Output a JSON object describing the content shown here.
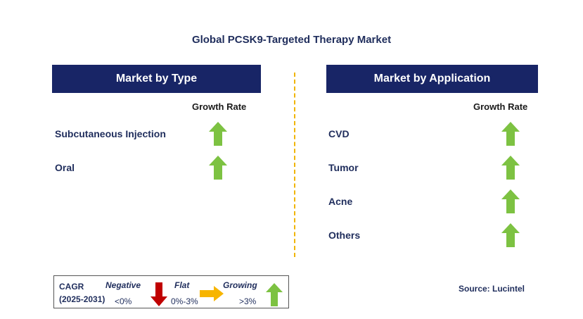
{
  "title": "Global PCSK9-Targeted Therapy Market",
  "type_panel": {
    "header": "Market by Type",
    "growth_label": "Growth Rate",
    "items": [
      {
        "label": "Subcutaneous Injection",
        "trend": "growing"
      },
      {
        "label": "Oral",
        "trend": "growing"
      }
    ]
  },
  "application_panel": {
    "header": "Market by Application",
    "growth_label": "Growth Rate",
    "items": [
      {
        "label": "CVD",
        "trend": "growing"
      },
      {
        "label": "Tumor",
        "trend": "growing"
      },
      {
        "label": "Acne",
        "trend": "growing"
      },
      {
        "label": "Others",
        "trend": "growing"
      }
    ]
  },
  "legend": {
    "cagr_label": "CAGR",
    "period": "(2025-2031)",
    "negative_label": "Negative",
    "negative_range": "<0%",
    "flat_label": "Flat",
    "flat_range": "0%-3%",
    "growing_label": "Growing",
    "growing_range": ">3%"
  },
  "source": "Source: Lucintel",
  "colors": {
    "header_bg": "#182566",
    "growing": "#7dc242",
    "negative": "#c00000",
    "flat": "#f7b500",
    "divider": "#f0b400"
  }
}
